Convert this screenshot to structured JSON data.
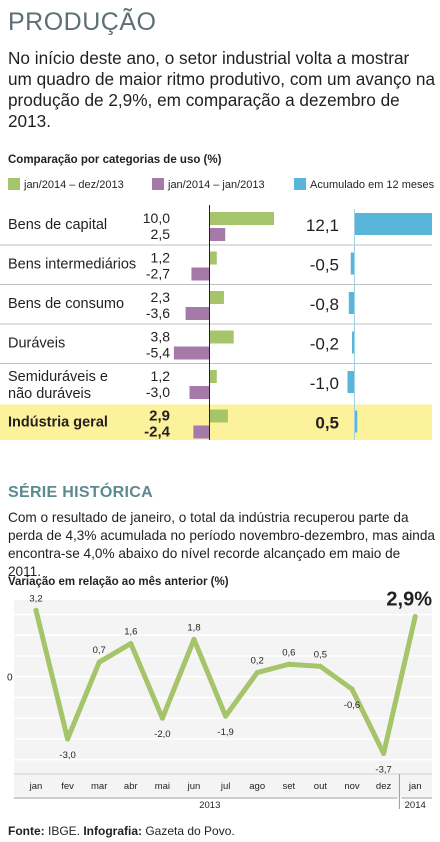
{
  "title": "PRODUÇÃO",
  "intro": "No início deste ano, o setor industrial volta a mostrar um quadro de maior ritmo produtivo, com um avanço na produção de 2,9%, em comparação a dezembro de 2013.",
  "colors": {
    "green": "#a6c46a",
    "purple": "#a57aa8",
    "blue": "#5ab6d8",
    "highlight": "#fbf29b",
    "line": "#a6c46a",
    "grid_bg": "#f4f4f4",
    "section_title": "#5b8a8f"
  },
  "chart_data": [
    {
      "type": "bar",
      "title": "Comparação por categorias de uso (%)",
      "legend": [
        {
          "label": "jan/2014 – dez/2013",
          "color": "#a6c46a"
        },
        {
          "label": "jan/2014 – jan/2013",
          "color": "#a57aa8"
        },
        {
          "label": "Acumulado em 12 meses",
          "color": "#5ab6d8"
        }
      ],
      "categories": [
        "Bens de capital",
        "Bens intermediários",
        "Bens de consumo",
        "Duráveis",
        "Semiduráveis e não duráveis",
        "Indústria geral"
      ],
      "category_lines": [
        [
          "Bens de capital"
        ],
        [
          "Bens intermediários"
        ],
        [
          "Bens de consumo"
        ],
        [
          "Duráveis"
        ],
        [
          "Semiduráveis e",
          "não duráveis"
        ],
        [
          "Indústria geral"
        ]
      ],
      "series": [
        {
          "name": "jan/2014 – dez/2013",
          "values": [
            10.0,
            1.2,
            2.3,
            3.8,
            1.2,
            2.9
          ],
          "labels": [
            "10,0",
            "1,2",
            "2,3",
            "3,8",
            "1,2",
            "2,9"
          ]
        },
        {
          "name": "jan/2014 – jan/2013",
          "values": [
            2.5,
            -2.7,
            -3.6,
            -5.4,
            -3.0,
            -2.4
          ],
          "labels": [
            "2,5",
            "-2,7",
            "-3,6",
            "-5,4",
            "-3,0",
            "-2,4"
          ]
        },
        {
          "name": "Acumulado em 12 meses",
          "values": [
            12.1,
            -0.5,
            -0.8,
            -0.2,
            -1.0,
            0.5
          ],
          "labels": [
            "12,1",
            "-0,5",
            "-0,8",
            "-0,2",
            "-1,0",
            "0,5"
          ]
        }
      ],
      "highlight_category": "Indústria geral"
    },
    {
      "type": "line",
      "section_title": "SÉRIE HISTÓRICA",
      "description": "Com o resultado de janeiro, o total da indústria recuperou parte da perda de 4,3% acumulada no período novembro-dezembro, mas ainda encontra-se 4,0% abaixo do nível recorde alcançado em maio de 2011.",
      "subtitle": "Variação em relação ao mês anterior (%)",
      "x": [
        "jan",
        "fev",
        "mar",
        "abr",
        "mai",
        "jun",
        "jul",
        "ago",
        "set",
        "out",
        "nov",
        "dez",
        "jan"
      ],
      "values": [
        3.2,
        -3.0,
        0.7,
        1.6,
        -2.0,
        1.8,
        -1.9,
        0.2,
        0.6,
        0.5,
        -0.6,
        -3.7,
        2.9
      ],
      "labels": [
        "3,2",
        "-3,0",
        "0,7",
        "1,6",
        "-2,0",
        "1,8",
        "-1,9",
        "0,2",
        "0,6",
        "0,5",
        "-0,6",
        "-3,7",
        "2,9%"
      ],
      "zero_label": "0",
      "year_labels": [
        "2013",
        "2014"
      ],
      "ylim": [
        -4.5,
        3.7
      ]
    }
  ],
  "source": {
    "prefix": "Fonte:",
    "source_text": " IBGE. ",
    "credit_prefix": "Infografia:",
    "credit_text": " Gazeta do Povo."
  }
}
